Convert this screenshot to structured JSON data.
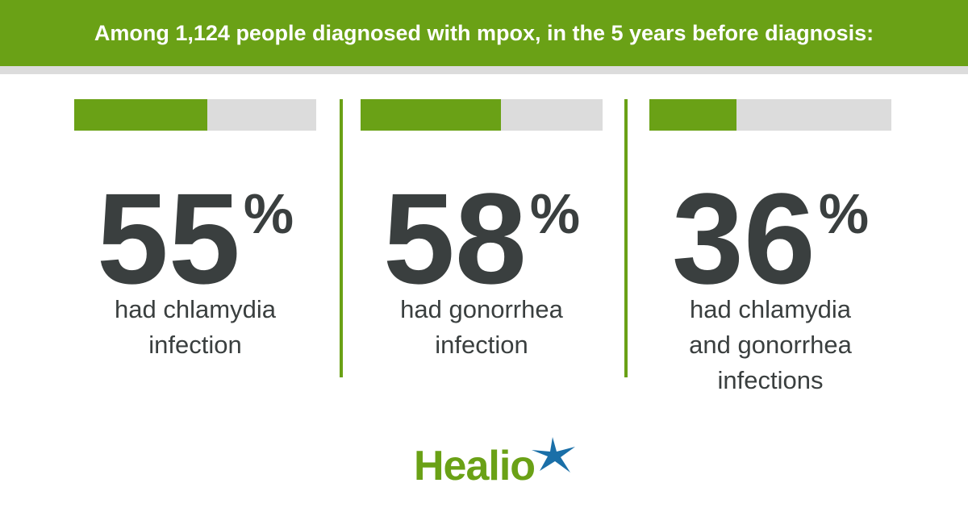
{
  "chart_data": {
    "type": "progress",
    "title": "Among 1,124 people diagnosed with mpox, in the 5 years before diagnosis:",
    "categories": [
      "had chlamydia infection",
      "had gonorrhea infection",
      "had chlamydia and gonorrhea infections"
    ],
    "values": [
      55,
      58,
      36
    ],
    "unit": "%",
    "xlim": [
      0,
      100
    ],
    "color": "#6aa116",
    "track_color": "#dcdcdc"
  },
  "brand": "Healio"
}
